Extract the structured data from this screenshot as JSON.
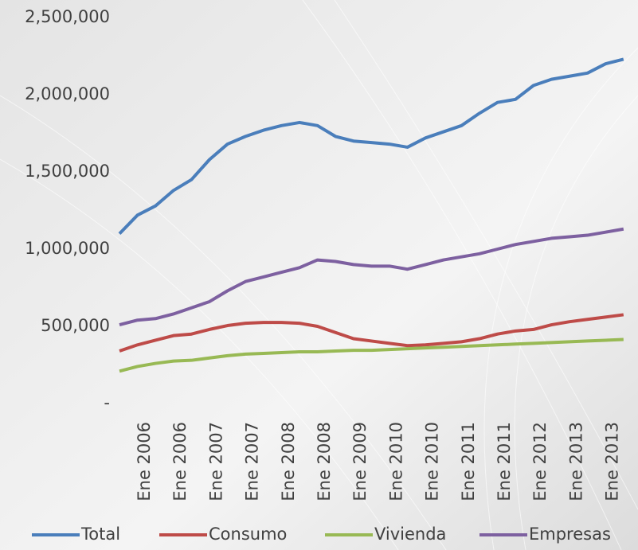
{
  "chart_data": {
    "type": "line",
    "categories": [
      "Ene 2006",
      null,
      "Ene 2006",
      null,
      "Ene 2007",
      null,
      "Ene 2007",
      null,
      "Ene 2008",
      null,
      "Ene 2008",
      null,
      "Ene 2009",
      null,
      "Ene 2010",
      null,
      "Ene 2010",
      null,
      "Ene 2011",
      null,
      "Ene 2011",
      null,
      "Ene 2012",
      null,
      "Ene 2013",
      null,
      "Ene 2013",
      null,
      null
    ],
    "series": [
      {
        "name": "Total",
        "color": "#4a7ebb",
        "values": [
          1100000,
          1220000,
          1280000,
          1380000,
          1450000,
          1580000,
          1680000,
          1730000,
          1770000,
          1800000,
          1820000,
          1800000,
          1730000,
          1700000,
          1690000,
          1680000,
          1660000,
          1720000,
          1760000,
          1800000,
          1880000,
          1950000,
          1970000,
          2060000,
          2100000,
          2120000,
          2140000,
          2200000,
          2230000
        ]
      },
      {
        "name": "Consumo",
        "color": "#be4b48",
        "values": [
          340000,
          380000,
          410000,
          440000,
          450000,
          480000,
          505000,
          520000,
          525000,
          525000,
          520000,
          500000,
          460000,
          420000,
          405000,
          390000,
          375000,
          380000,
          390000,
          400000,
          420000,
          450000,
          470000,
          480000,
          510000,
          530000,
          545000,
          560000,
          575000
        ]
      },
      {
        "name": "Vivienda",
        "color": "#98b954",
        "values": [
          210000,
          240000,
          260000,
          275000,
          280000,
          295000,
          310000,
          320000,
          325000,
          330000,
          335000,
          335000,
          340000,
          345000,
          345000,
          350000,
          355000,
          360000,
          365000,
          370000,
          375000,
          380000,
          385000,
          390000,
          395000,
          400000,
          405000,
          410000,
          415000
        ]
      },
      {
        "name": "Empresas",
        "color": "#7d60a0",
        "values": [
          510000,
          540000,
          550000,
          580000,
          620000,
          660000,
          730000,
          790000,
          820000,
          850000,
          880000,
          930000,
          920000,
          900000,
          890000,
          890000,
          870000,
          900000,
          930000,
          950000,
          970000,
          1000000,
          1030000,
          1050000,
          1070000,
          1080000,
          1090000,
          1110000,
          1130000
        ]
      }
    ],
    "ylim": [
      0,
      2500000
    ],
    "yticks": [
      {
        "value": 0,
        "label": "-"
      },
      {
        "value": 500000,
        "label": "500,000"
      },
      {
        "value": 1000000,
        "label": "1,000,000"
      },
      {
        "value": 1500000,
        "label": "1,500,000"
      },
      {
        "value": 2000000,
        "label": "2,000,000"
      },
      {
        "value": 2500000,
        "label": "2,500,000"
      }
    ],
    "legend": "bottom"
  }
}
